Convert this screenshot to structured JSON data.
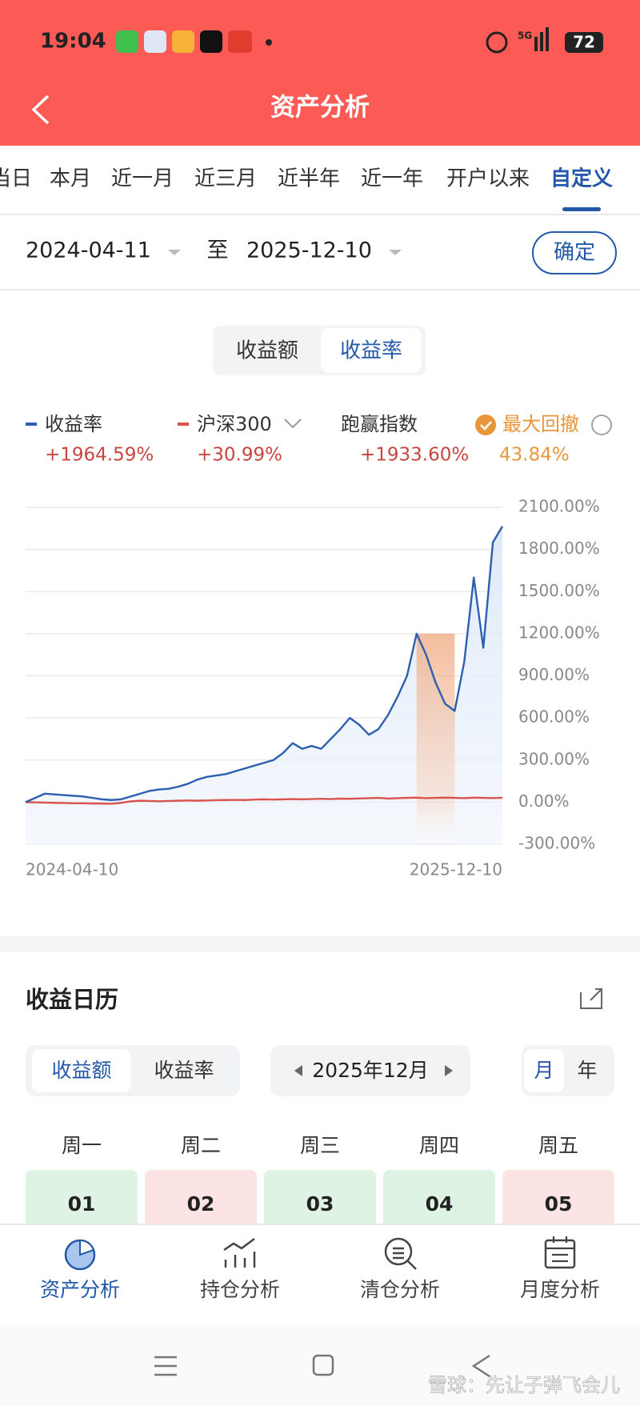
{
  "status_bar": {
    "time": "19:04",
    "network": "5G",
    "battery": "72"
  },
  "header": {
    "title": "资产分析"
  },
  "tabs": {
    "items": [
      "当日",
      "本月",
      "近一月",
      "近三月",
      "近半年",
      "近一年",
      "开户以来",
      "自定义"
    ],
    "active": 7
  },
  "date_range": {
    "start": "2024-04-11",
    "separator": "至",
    "end": "2025-12-10",
    "confirm": "确定"
  },
  "chart_toggle": {
    "items": [
      "收益额",
      "收益率"
    ],
    "active": 1
  },
  "summary": {
    "values": [
      "+1964.59%",
      "+30.99%",
      "+1933.60%",
      "43.84%"
    ],
    "extra_names": [
      "跑赢指数",
      "最大回撤"
    ],
    "drawdown_color": "#e8963a",
    "gain_color": "#c9453f"
  },
  "chart_data": {
    "type": "line",
    "categories": [
      "2024-04-10",
      null,
      null,
      null,
      null,
      null,
      null,
      null,
      null,
      null,
      null,
      null,
      null,
      null,
      null,
      null,
      null,
      null,
      null,
      null,
      null,
      null,
      null,
      null,
      null,
      null,
      null,
      null,
      null,
      null,
      null,
      null,
      null,
      null,
      null,
      null,
      null,
      null,
      null,
      null,
      null,
      null,
      null,
      null,
      null,
      null,
      null,
      null,
      null,
      null,
      "2025-12-10"
    ],
    "series": [
      {
        "name": "收益率",
        "color": "#2b5fb0",
        "values": [
          0,
          30,
          60,
          55,
          50,
          45,
          40,
          30,
          20,
          15,
          20,
          40,
          60,
          80,
          90,
          95,
          110,
          130,
          160,
          180,
          190,
          200,
          220,
          240,
          260,
          280,
          300,
          350,
          420,
          380,
          400,
          380,
          450,
          520,
          600,
          550,
          480,
          520,
          620,
          750,
          900,
          1200,
          1050,
          850,
          700,
          650,
          1000,
          1600,
          1100,
          1850,
          1964.59
        ]
      },
      {
        "name": "沪深300",
        "color": "#d9534f",
        "values": [
          0,
          -2,
          -3,
          -5,
          -6,
          -8,
          -8,
          -10,
          -10,
          -12,
          -5,
          5,
          10,
          8,
          6,
          8,
          10,
          12,
          10,
          12,
          14,
          15,
          16,
          15,
          18,
          20,
          18,
          20,
          22,
          20,
          22,
          24,
          22,
          25,
          24,
          26,
          28,
          30,
          25,
          28,
          30,
          32,
          28,
          30,
          32,
          30,
          28,
          32,
          30,
          29,
          30.99
        ]
      }
    ],
    "ylim": [
      -300,
      2100
    ],
    "yticks": [
      {
        "value": -300,
        "label": "-300.00%"
      },
      {
        "value": 0,
        "label": "0.00%"
      },
      {
        "value": 300,
        "label": "300.00%"
      },
      {
        "value": 600,
        "label": "600.00%"
      },
      {
        "value": 900,
        "label": "900.00%"
      },
      {
        "value": 1200,
        "label": "1200.00%"
      },
      {
        "value": 1500,
        "label": "1500.00%"
      },
      {
        "value": 1800,
        "label": "1800.00%"
      },
      {
        "value": 2100,
        "label": "2100.00%"
      }
    ],
    "grid": true
  },
  "calendar": {
    "title": "收益日历",
    "mode_toggle": {
      "items": [
        "收益额",
        "收益率"
      ],
      "active": 0
    },
    "month": "2025年12月",
    "period_toggle": {
      "items": [
        "月",
        "年"
      ],
      "active": 0
    },
    "weekdays": [
      "周一",
      "周二",
      "周三",
      "周四",
      "周五"
    ],
    "days": [
      {
        "label": "01",
        "color": "#dff3e4"
      },
      {
        "label": "02",
        "color": "#fde4e4"
      },
      {
        "label": "03",
        "color": "#dff3e4"
      },
      {
        "label": "04",
        "color": "#dff3e4"
      },
      {
        "label": "05",
        "color": "#fde4e4"
      }
    ]
  },
  "bottom_nav": {
    "items": [
      "资产分析",
      "持仓分析",
      "清仓分析",
      "月度分析"
    ],
    "active": 0
  },
  "watermark": "雪球：先让子弹飞会儿"
}
